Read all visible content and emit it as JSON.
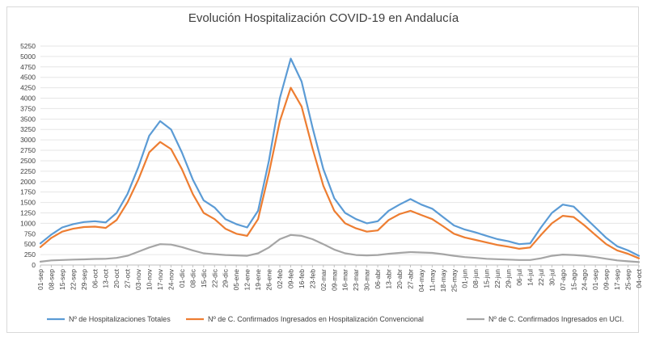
{
  "chart_data": {
    "type": "line",
    "title": "Evolución Hospitalización COVID-19 en Andalucía",
    "xlabel": "",
    "ylabel": "",
    "ylim": [
      0,
      5250
    ],
    "y_ticks": [
      0,
      250,
      500,
      750,
      1000,
      1250,
      1500,
      1750,
      2000,
      2250,
      2500,
      2750,
      3000,
      3250,
      3500,
      3750,
      4000,
      4250,
      4500,
      4750,
      5000,
      5250
    ],
    "x_tick_labels": [
      "01-sep",
      "08-sep",
      "15-sep",
      "22-sep",
      "29-sep",
      "06-oct",
      "13-oct",
      "20-oct",
      "27-oct",
      "03-nov",
      "10-nov",
      "17-nov",
      "24-nov",
      "01-dic",
      "08-dic",
      "15-dic",
      "22-dic",
      "29-dic",
      "05-ene",
      "12-ene",
      "19-ene",
      "26-ene",
      "02-feb",
      "09-feb",
      "16-feb",
      "23-feb",
      "02-mar",
      "09-mar",
      "16-mar",
      "23-mar",
      "30-mar",
      "06-abr",
      "13-abr",
      "20-abr",
      "27-abr",
      "04-may",
      "11-may",
      "18-may",
      "25-may",
      "01-jun",
      "08-jun",
      "15-jun",
      "22-jun",
      "29-jun",
      "06-jul",
      "14-jul",
      "22-jul",
      "30-jul",
      "07-ago",
      "15-ago",
      "24-ago",
      "01-sep",
      "09-sep",
      "17-sep",
      "25-sep",
      "04-oct"
    ],
    "series": [
      {
        "name": "Nº de Hospitalizaciones Totales",
        "color": "#5b9bd5",
        "values": [
          520,
          730,
          900,
          980,
          1030,
          1050,
          1020,
          1250,
          1700,
          2350,
          3100,
          3450,
          3250,
          2700,
          2050,
          1550,
          1380,
          1100,
          980,
          900,
          1300,
          2500,
          4000,
          4950,
          4400,
          3300,
          2300,
          1600,
          1250,
          1100,
          1000,
          1050,
          1300,
          1450,
          1580,
          1450,
          1350,
          1150,
          950,
          850,
          780,
          700,
          620,
          570,
          500,
          520,
          900,
          1250,
          1450,
          1400,
          1150,
          900,
          650,
          450,
          350,
          220
        ]
      },
      {
        "name": "Nº de C. Confirmados Ingresados en Hospitalización Convencional",
        "color": "#ed7d31",
        "values": [
          430,
          650,
          800,
          870,
          910,
          920,
          890,
          1080,
          1500,
          2050,
          2700,
          2950,
          2780,
          2300,
          1700,
          1250,
          1100,
          870,
          750,
          700,
          1100,
          2200,
          3450,
          4250,
          3800,
          2800,
          1900,
          1300,
          1000,
          880,
          800,
          830,
          1080,
          1220,
          1300,
          1200,
          1100,
          930,
          750,
          660,
          600,
          540,
          480,
          440,
          390,
          420,
          720,
          1000,
          1180,
          1150,
          950,
          720,
          500,
          350,
          270,
          160
        ]
      },
      {
        "name": "Nº de C. Confirmados Ingresados en UCI.",
        "color": "#a5a5a5",
        "values": [
          80,
          110,
          120,
          130,
          135,
          145,
          150,
          170,
          220,
          320,
          420,
          500,
          490,
          430,
          350,
          280,
          260,
          240,
          230,
          220,
          280,
          420,
          620,
          720,
          700,
          620,
          500,
          370,
          280,
          240,
          230,
          240,
          270,
          290,
          310,
          300,
          290,
          260,
          220,
          190,
          170,
          150,
          140,
          130,
          120,
          120,
          160,
          220,
          250,
          240,
          220,
          190,
          150,
          110,
          90,
          70
        ]
      }
    ],
    "legend": "bottom"
  }
}
